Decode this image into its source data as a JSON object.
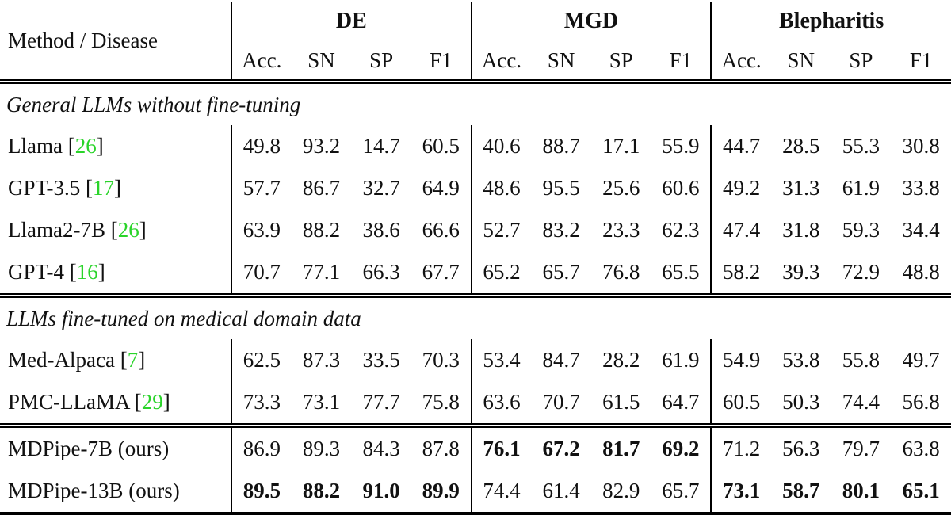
{
  "table": {
    "method_header": "Method / Disease",
    "disease_groups": [
      "DE",
      "MGD",
      "Blepharitis"
    ],
    "metric_headers": [
      "Acc.",
      "SN",
      "SP",
      "F1"
    ],
    "citation_color": "#2ad42a",
    "sections": [
      {
        "title": "General LLMs without fine-tuning",
        "rows": [
          {
            "method": "Llama",
            "cite": "26",
            "values": [
              "49.8",
              "93.2",
              "14.7",
              "60.5",
              "40.6",
              "88.7",
              "17.1",
              "55.9",
              "44.7",
              "28.5",
              "55.3",
              "30.8"
            ],
            "bold_groups": []
          },
          {
            "method": "GPT-3.5",
            "cite": "17",
            "values": [
              "57.7",
              "86.7",
              "32.7",
              "64.9",
              "48.6",
              "95.5",
              "25.6",
              "60.6",
              "49.2",
              "31.3",
              "61.9",
              "33.8"
            ],
            "bold_groups": []
          },
          {
            "method": "Llama2-7B",
            "cite": "26",
            "values": [
              "63.9",
              "88.2",
              "38.6",
              "66.6",
              "52.7",
              "83.2",
              "23.3",
              "62.3",
              "47.4",
              "31.8",
              "59.3",
              "34.4"
            ],
            "bold_groups": []
          },
          {
            "method": "GPT-4",
            "cite": "16",
            "values": [
              "70.7",
              "77.1",
              "66.3",
              "67.7",
              "65.2",
              "65.7",
              "76.8",
              "65.5",
              "58.2",
              "39.3",
              "72.9",
              "48.8"
            ],
            "bold_groups": []
          }
        ]
      },
      {
        "title": "LLMs fine-tuned on medical domain data",
        "rows": [
          {
            "method": "Med-Alpaca",
            "cite": "7",
            "values": [
              "62.5",
              "87.3",
              "33.5",
              "70.3",
              "53.4",
              "84.7",
              "28.2",
              "61.9",
              "54.9",
              "53.8",
              "55.8",
              "49.7"
            ],
            "bold_groups": []
          },
          {
            "method": "PMC-LLaMA",
            "cite": "29",
            "values": [
              "73.3",
              "73.1",
              "77.7",
              "75.8",
              "63.6",
              "70.7",
              "61.5",
              "64.7",
              "60.5",
              "50.3",
              "74.4",
              "56.8"
            ],
            "bold_groups": []
          }
        ]
      },
      {
        "title": "",
        "rows": [
          {
            "method": "MDPipe-7B (ours)",
            "cite": "",
            "values": [
              "86.9",
              "89.3",
              "84.3",
              "87.8",
              "76.1",
              "67.2",
              "81.7",
              "69.2",
              "71.2",
              "56.3",
              "79.7",
              "63.8"
            ],
            "bold_groups": [
              1
            ]
          },
          {
            "method": "MDPipe-13B (ours)",
            "cite": "",
            "values": [
              "89.5",
              "88.2",
              "91.0",
              "89.9",
              "74.4",
              "61.4",
              "82.9",
              "65.7",
              "73.1",
              "58.7",
              "80.1",
              "65.1"
            ],
            "bold_groups": [
              0,
              2
            ]
          }
        ]
      }
    ]
  }
}
